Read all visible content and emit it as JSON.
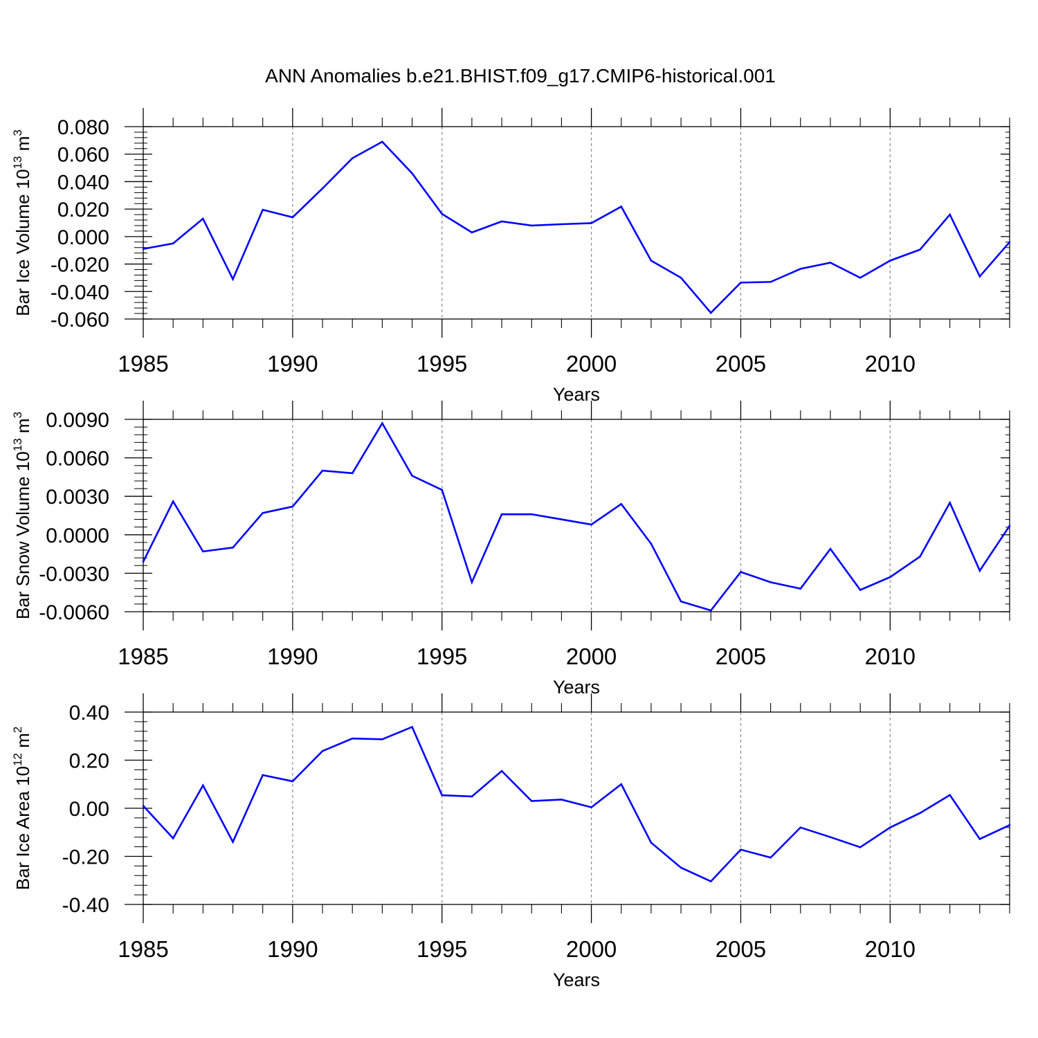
{
  "title": "ANN Anomalies b.e21.BHIST.f09_g17.CMIP6-historical.001",
  "colors": {
    "line": "#0000ff",
    "axis": "#000000",
    "grid": "#888888"
  },
  "chart_data": [
    {
      "type": "line",
      "xlabel": "Years",
      "ylabel": {
        "prefix": "Bar Ice Volume 10",
        "exp": "13",
        "unit": " m",
        "unit_exp": "3"
      },
      "xlim": [
        1985,
        2014
      ],
      "ylim": [
        -0.06,
        0.08
      ],
      "xticks": [
        1985,
        1990,
        1995,
        2000,
        2005,
        2010
      ],
      "xtick_labels": [
        "1985",
        "1990",
        "1995",
        "2000",
        "2005",
        "2010"
      ],
      "yticks": [
        -0.06,
        -0.04,
        -0.02,
        0.0,
        0.02,
        0.04,
        0.06,
        0.08
      ],
      "ytick_labels": [
        "-0.060",
        "-0.040",
        "-0.020",
        "0.000",
        "0.020",
        "0.040",
        "0.060",
        "0.080"
      ],
      "series": [
        {
          "name": "Bar Ice Volume",
          "x": [
            1985,
            1986,
            1987,
            1988,
            1989,
            1990,
            1991,
            1992,
            1993,
            1994,
            1995,
            1996,
            1997,
            1998,
            1999,
            2000,
            2001,
            2002,
            2003,
            2004,
            2005,
            2006,
            2007,
            2008,
            2009,
            2010,
            2011,
            2012,
            2013,
            2014
          ],
          "values": [
            -0.009,
            -0.005,
            0.013,
            -0.031,
            0.0195,
            0.014,
            0.035,
            0.057,
            0.069,
            0.046,
            0.0165,
            0.003,
            0.011,
            0.008,
            0.009,
            0.0098,
            0.0218,
            -0.0175,
            -0.03,
            -0.0555,
            -0.0335,
            -0.033,
            -0.0235,
            -0.019,
            -0.03,
            -0.0175,
            -0.0095,
            0.016,
            -0.029,
            -0.004
          ]
        }
      ]
    },
    {
      "type": "line",
      "xlabel": "Years",
      "ylabel": {
        "prefix": "Bar Snow Volume 10",
        "exp": "13",
        "unit": " m",
        "unit_exp": "3"
      },
      "xlim": [
        1985,
        2014
      ],
      "ylim": [
        -0.006,
        0.009
      ],
      "xticks": [
        1985,
        1990,
        1995,
        2000,
        2005,
        2010
      ],
      "xtick_labels": [
        "1985",
        "1990",
        "1995",
        "2000",
        "2005",
        "2010"
      ],
      "yticks": [
        -0.006,
        -0.003,
        0.0,
        0.003,
        0.006,
        0.009
      ],
      "ytick_labels": [
        "-0.0060",
        "-0.0030",
        "0.0000",
        "0.0030",
        "0.0060",
        "0.0090"
      ],
      "series": [
        {
          "name": "Bar Snow Volume",
          "x": [
            1985,
            1986,
            1987,
            1988,
            1989,
            1990,
            1991,
            1992,
            1993,
            1994,
            1995,
            1996,
            1997,
            1998,
            1999,
            2000,
            2001,
            2002,
            2003,
            2004,
            2005,
            2006,
            2007,
            2008,
            2009,
            2010,
            2011,
            2012,
            2013,
            2014
          ],
          "values": [
            -0.0021,
            0.0026,
            -0.0013,
            -0.001,
            0.0017,
            0.0022,
            0.005,
            0.0048,
            0.0087,
            0.0046,
            0.0035,
            -0.0037,
            0.0016,
            0.0016,
            0.0012,
            0.0008,
            0.0024,
            -0.0007,
            -0.0052,
            -0.0059,
            -0.0029,
            -0.0037,
            -0.0042,
            -0.0011,
            -0.0043,
            -0.0033,
            -0.0017,
            0.0025,
            -0.0028,
            0.0007
          ]
        }
      ]
    },
    {
      "type": "line",
      "xlabel": "Years",
      "ylabel": {
        "prefix": "Bar Ice Area 10",
        "exp": "12",
        "unit": " m",
        "unit_exp": "2"
      },
      "xlim": [
        1985,
        2014
      ],
      "ylim": [
        -0.4,
        0.4
      ],
      "xticks": [
        1985,
        1990,
        1995,
        2000,
        2005,
        2010
      ],
      "xtick_labels": [
        "1985",
        "1990",
        "1995",
        "2000",
        "2005",
        "2010"
      ],
      "yticks": [
        -0.4,
        -0.2,
        0.0,
        0.2,
        0.4
      ],
      "ytick_labels": [
        "-0.40",
        "-0.20",
        "0.00",
        "0.20",
        "0.40"
      ],
      "series": [
        {
          "name": "Bar Ice Area",
          "x": [
            1985,
            1986,
            1987,
            1988,
            1989,
            1990,
            1991,
            1992,
            1993,
            1994,
            1995,
            1996,
            1997,
            1998,
            1999,
            2000,
            2001,
            2002,
            2003,
            2004,
            2005,
            2006,
            2007,
            2008,
            2009,
            2010,
            2011,
            2012,
            2013,
            2014
          ],
          "values": [
            0.01,
            -0.125,
            0.095,
            -0.14,
            0.138,
            0.112,
            0.238,
            0.29,
            0.287,
            0.338,
            0.054,
            0.049,
            0.155,
            0.03,
            0.036,
            0.004,
            0.1,
            -0.143,
            -0.247,
            -0.304,
            -0.172,
            -0.205,
            -0.08,
            -0.12,
            -0.162,
            -0.08,
            -0.02,
            0.055,
            -0.128,
            -0.07
          ]
        }
      ]
    }
  ]
}
